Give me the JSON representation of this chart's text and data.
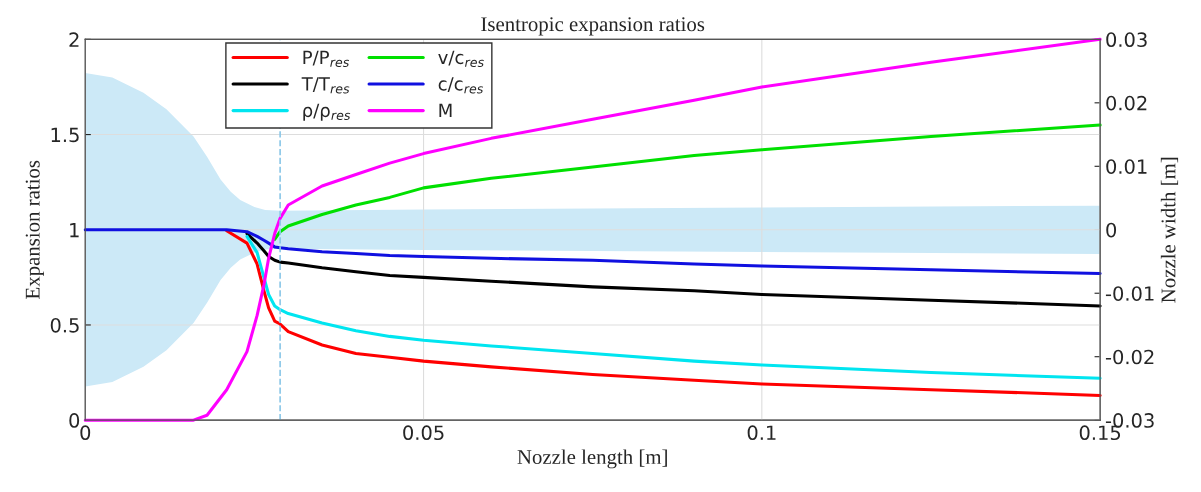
{
  "chart_data": {
    "type": "line",
    "title": "Isentropic expansion ratios",
    "xlabel": "Nozzle length [m]",
    "ylabel": "Expansion ratios",
    "y2label": "Nozzle width [m]",
    "x": [
      0,
      0.01,
      0.016,
      0.018,
      0.0209,
      0.0239,
      0.0254,
      0.0264,
      0.0271,
      0.028,
      0.0288,
      0.03,
      0.035,
      0.04,
      0.045,
      0.05,
      0.06,
      0.075,
      0.09,
      0.1,
      0.125,
      0.15
    ],
    "series": [
      {
        "type": "area",
        "axis": "y2",
        "color": "#cce9f7",
        "x": [
          0,
          0.004,
          0.0086,
          0.012,
          0.016,
          0.018,
          0.02,
          0.0215,
          0.0229,
          0.025,
          0.0266,
          0.0288,
          0.05,
          0.1,
          0.15
        ],
        "values": [
          0.0247,
          0.024,
          0.0216,
          0.019,
          0.0147,
          0.0115,
          0.0079,
          0.006,
          0.0047,
          0.0036,
          0.0031,
          0.003,
          0.0032,
          0.0035,
          0.0038
        ]
      },
      {
        "type": "area",
        "axis": "y2",
        "color": "#cce9f7",
        "x": [
          0,
          0.004,
          0.0086,
          0.012,
          0.016,
          0.018,
          0.02,
          0.0215,
          0.0229,
          0.025,
          0.0266,
          0.0288,
          0.05,
          0.1,
          0.15
        ],
        "values": [
          -0.0247,
          -0.024,
          -0.0216,
          -0.019,
          -0.0147,
          -0.0115,
          -0.0079,
          -0.006,
          -0.0047,
          -0.0036,
          -0.0031,
          -0.003,
          -0.0032,
          -0.0035,
          -0.0038
        ]
      },
      {
        "name": "P/P$_{res}$",
        "color": "#ff0000",
        "values": [
          null,
          null,
          null,
          null,
          0.995,
          0.93,
          0.82,
          0.68,
          0.59,
          0.52,
          0.505,
          0.465,
          0.395,
          0.35,
          0.33,
          0.31,
          0.28,
          0.24,
          0.21,
          0.19,
          0.16,
          0.13
        ]
      },
      {
        "name": "T/T$_{res}$",
        "color": "#000000",
        "values": [
          null,
          null,
          null,
          null,
          null,
          0.98,
          0.93,
          0.89,
          0.86,
          0.84,
          0.83,
          0.825,
          0.8,
          0.78,
          0.76,
          0.75,
          0.73,
          0.7,
          0.68,
          0.66,
          0.63,
          0.6
        ]
      },
      {
        "name": "ρ/ρ$_{res}$",
        "color": "#00e5f0",
        "values": [
          null,
          null,
          null,
          null,
          null,
          0.965,
          0.88,
          0.75,
          0.66,
          0.6,
          0.58,
          0.56,
          0.51,
          0.47,
          0.44,
          0.42,
          0.39,
          0.35,
          0.31,
          0.29,
          0.25,
          0.22
        ]
      },
      {
        "name": "v/c$_{res}$",
        "color": "#00e000",
        "values": [
          null,
          null,
          null,
          null,
          null,
          null,
          null,
          null,
          null,
          0.95,
          0.99,
          1.02,
          1.08,
          1.13,
          1.17,
          1.22,
          1.27,
          1.33,
          1.39,
          1.42,
          1.49,
          1.55
        ]
      },
      {
        "name": "c/c$_{res}$",
        "color": "#1010e0",
        "values": [
          1,
          1,
          1,
          1,
          1,
          0.99,
          0.965,
          0.945,
          0.93,
          0.91,
          0.905,
          0.9,
          0.885,
          0.875,
          0.865,
          0.86,
          0.85,
          0.84,
          0.82,
          0.81,
          0.79,
          0.77
        ]
      },
      {
        "name": "M",
        "color": "#ff00ff",
        "values": [
          0,
          0,
          0,
          0.026,
          0.16,
          0.36,
          0.55,
          0.71,
          0.85,
          0.98,
          1.06,
          1.13,
          1.23,
          1.29,
          1.35,
          1.4,
          1.48,
          1.58,
          1.68,
          1.75,
          1.88,
          2.0
        ]
      }
    ],
    "ref_lines": [
      {
        "axis": "x",
        "value": 0.0288,
        "color": "#8cc8e8",
        "line_style": "dashed"
      }
    ],
    "xlim": [
      0,
      0.15
    ],
    "xticks": [
      0,
      0.05,
      0.1,
      0.15
    ],
    "ylim": [
      0,
      2
    ],
    "yticks": [
      0,
      0.5,
      1,
      1.5,
      2
    ],
    "y2lim": [
      -0.03,
      0.03
    ],
    "y2ticks": [
      -0.03,
      -0.02,
      -0.01,
      0,
      0.01,
      0.02,
      0.03
    ],
    "grid": true,
    "legend": "top left",
    "line_style": "solid"
  }
}
